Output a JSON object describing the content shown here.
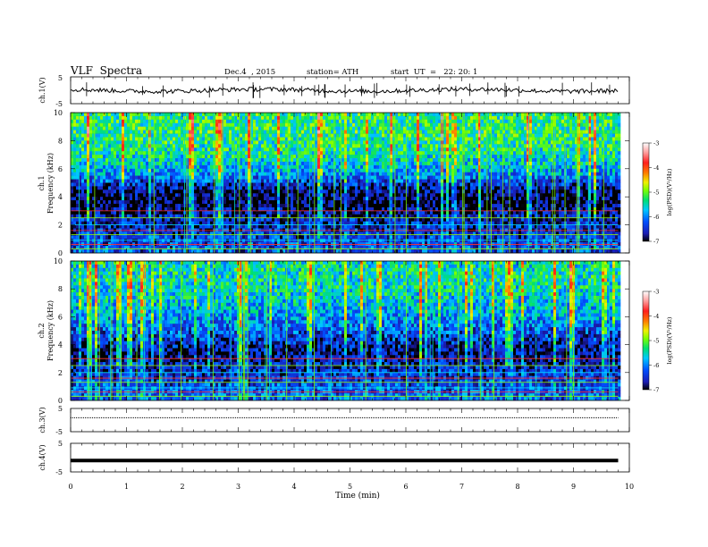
{
  "header": {
    "title": "VLF  Spectra",
    "date": "Dec.4  , 2015",
    "station": "station= ATH",
    "start": "start  UT  =   22: 20: 1"
  },
  "panels": {
    "ch1_wave": {
      "ylabel": "ch.1(V)",
      "yticks": [
        "5",
        "-5"
      ]
    },
    "ch1_spec": {
      "ylabel1": "ch.1",
      "ylabel2": "Frequency  (kHz)",
      "yticks": [
        "0",
        "2",
        "4",
        "6",
        "8",
        "10"
      ]
    },
    "ch2_spec": {
      "ylabel1": "ch.2",
      "ylabel2": "Frequency  (kHz)",
      "yticks": [
        "0",
        "2",
        "4",
        "6",
        "8",
        "10"
      ]
    },
    "ch3_wave": {
      "ylabel": "ch.3(V)",
      "yticks": [
        "5",
        "-5"
      ]
    },
    "ch4_wave": {
      "ylabel": "ch.4(V)",
      "yticks": [
        "5",
        "-5"
      ]
    }
  },
  "xaxis": {
    "label": "Time  (min)",
    "ticks": [
      "0",
      "1",
      "2",
      "3",
      "4",
      "5",
      "6",
      "7",
      "8",
      "9",
      "10"
    ]
  },
  "colorbar": {
    "label": "log(PSD)(V²/Hz)",
    "ticks": [
      "-3",
      "-4",
      "-5",
      "-6",
      "-7"
    ],
    "colors": [
      "#000000",
      "#1c1cb4",
      "#0050ff",
      "#00c8ff",
      "#00e070",
      "#7cff00",
      "#f0f000",
      "#ff7800",
      "#ff1e1e",
      "#ff9a9a",
      "#ffffff"
    ]
  },
  "chart_data": {
    "type": "heatmap",
    "title": "VLF  Spectra",
    "x_range_min": [
      0,
      10
    ],
    "data_end_min": 9.8,
    "freq_range_khz": [
      0,
      10
    ],
    "logpsd_range": [
      -7,
      -3
    ],
    "xlabel": "Time  (min)",
    "ylabel": "Frequency  (kHz)",
    "channels": [
      {
        "name": "ch.1",
        "mean_logpsd_by_freq_khz": {
          "0.5": -6.3,
          "1.5": -6.5,
          "2.5": -6.6,
          "3.5": -7.0,
          "4.5": -6.8,
          "5.5": -6.0,
          "6.5": -5.6,
          "7.5": -5.4,
          "8.5": -5.3,
          "9.5": -5.3
        }
      },
      {
        "name": "ch.2",
        "mean_logpsd_by_freq_khz": {
          "0.5": -6.2,
          "1.5": -6.4,
          "2.5": -6.6,
          "3.5": -6.8,
          "4.5": -6.4,
          "5.5": -6.1,
          "6.5": -5.8,
          "7.5": -5.6,
          "8.5": -5.5,
          "9.5": -5.5
        }
      }
    ],
    "waveforms": [
      {
        "name": "ch.1(V)",
        "ylim": [
          -5,
          5
        ],
        "baseline_v": 0.0
      },
      {
        "name": "ch.3(V)",
        "ylim": [
          -5,
          5
        ],
        "baseline_v": 1.0
      },
      {
        "name": "ch.4(V)",
        "ylim": [
          -5,
          5
        ],
        "baseline_v": -1.0
      }
    ]
  }
}
